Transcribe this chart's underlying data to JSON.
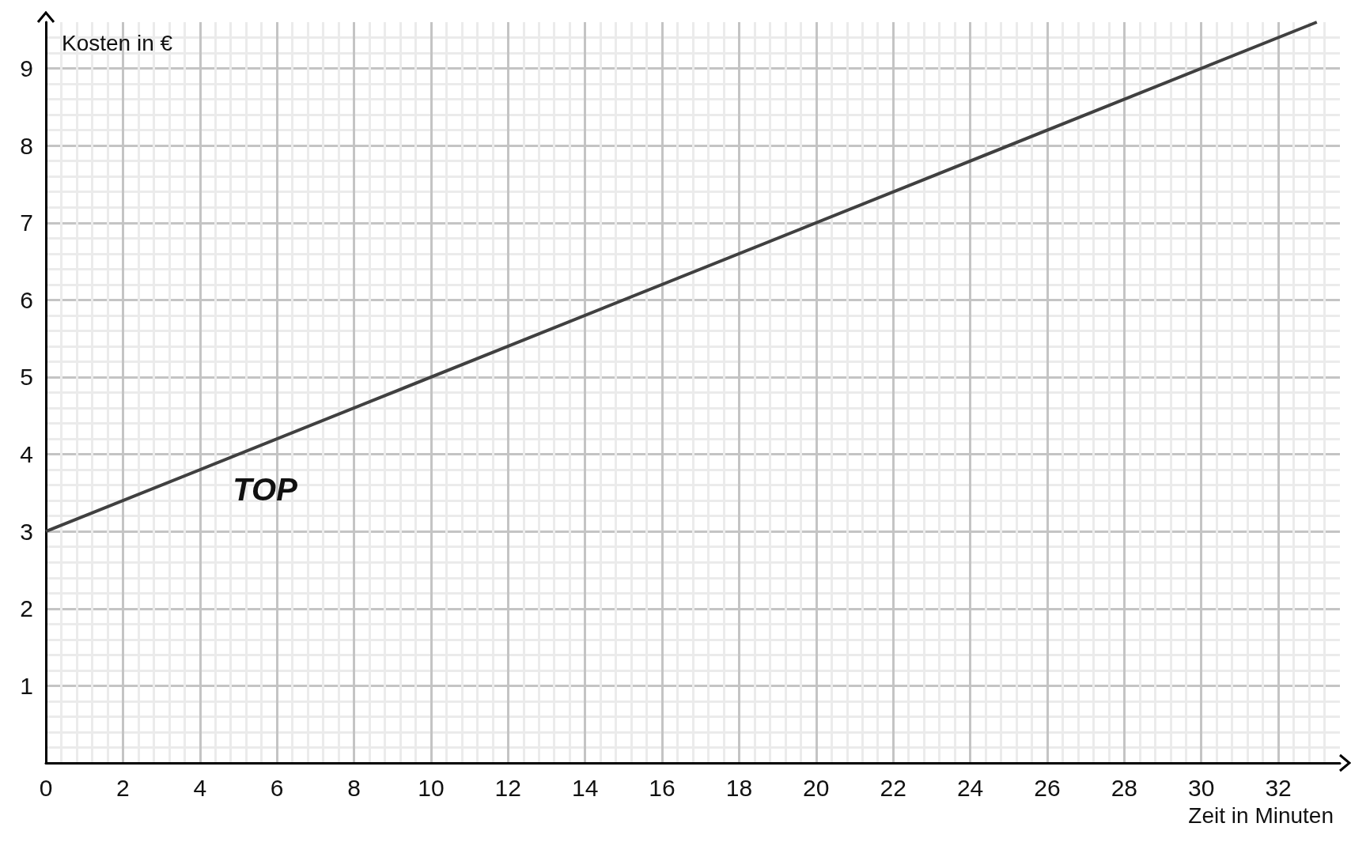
{
  "chart_data": {
    "type": "line",
    "xlabel": "Zeit in Minuten",
    "ylabel": "Kosten in €",
    "x": [
      0,
      33
    ],
    "series": [
      {
        "name": "TOP",
        "color": "#404040",
        "values": [
          3,
          9.6
        ]
      }
    ],
    "xlim": [
      0,
      33.6
    ],
    "ylim": [
      0,
      9.6
    ],
    "xticks": [
      0,
      2,
      4,
      6,
      8,
      10,
      12,
      14,
      16,
      18,
      20,
      22,
      24,
      26,
      28,
      30,
      32
    ],
    "yticks": [
      {
        "value": 0,
        "label": null
      },
      1,
      2,
      3,
      4,
      5,
      6,
      7,
      8,
      9
    ],
    "grid": true,
    "marker": "none",
    "line_style": "solid"
  }
}
